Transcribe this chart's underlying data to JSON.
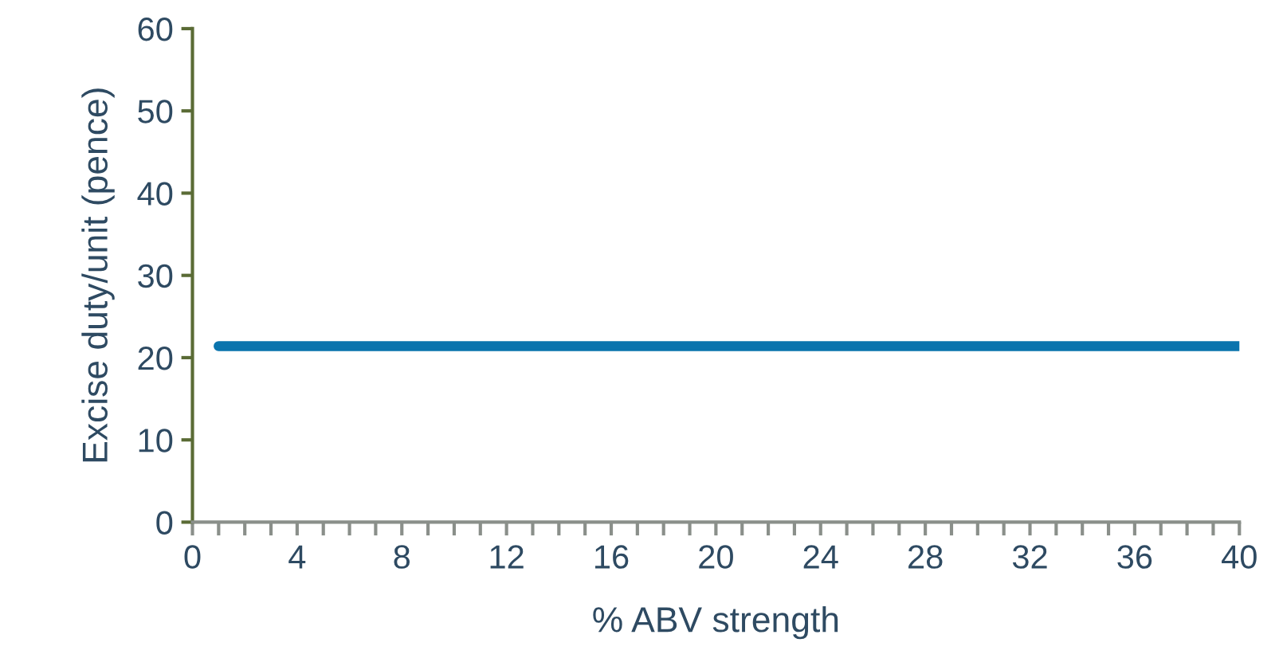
{
  "chart_data": {
    "type": "line",
    "xlabel": "% ABV strength",
    "ylabel": "Excise duty/unit (pence)",
    "x": [
      1,
      40
    ],
    "series": [
      {
        "color": "#0a74ad",
        "values": [
          21.4,
          21.4
        ]
      }
    ],
    "xlim": [
      0,
      40
    ],
    "xticks": [
      0,
      {
        "value": 1,
        "label": null
      },
      {
        "value": 2,
        "label": null
      },
      {
        "value": 3,
        "label": null
      },
      4,
      {
        "value": 5,
        "label": null
      },
      {
        "value": 6,
        "label": null
      },
      {
        "value": 7,
        "label": null
      },
      8,
      {
        "value": 9,
        "label": null
      },
      {
        "value": 10,
        "label": null
      },
      {
        "value": 11,
        "label": null
      },
      12,
      {
        "value": 13,
        "label": null
      },
      {
        "value": 14,
        "label": null
      },
      {
        "value": 15,
        "label": null
      },
      16,
      {
        "value": 17,
        "label": null
      },
      {
        "value": 18,
        "label": null
      },
      {
        "value": 19,
        "label": null
      },
      20,
      {
        "value": 21,
        "label": null
      },
      {
        "value": 22,
        "label": null
      },
      {
        "value": 23,
        "label": null
      },
      24,
      {
        "value": 25,
        "label": null
      },
      {
        "value": 26,
        "label": null
      },
      {
        "value": 27,
        "label": null
      },
      28,
      {
        "value": 29,
        "label": null
      },
      {
        "value": 30,
        "label": null
      },
      {
        "value": 31,
        "label": null
      },
      32,
      {
        "value": 33,
        "label": null
      },
      {
        "value": 34,
        "label": null
      },
      {
        "value": 35,
        "label": null
      },
      36,
      {
        "value": 37,
        "label": null
      },
      {
        "value": 38,
        "label": null
      },
      {
        "value": 39,
        "label": null
      },
      40
    ],
    "ylim": [
      0,
      60
    ],
    "yticks": [
      0,
      10,
      20,
      30,
      40,
      50,
      60
    ],
    "grid": false,
    "legend": false,
    "marker": "none",
    "line_style": "solid"
  }
}
